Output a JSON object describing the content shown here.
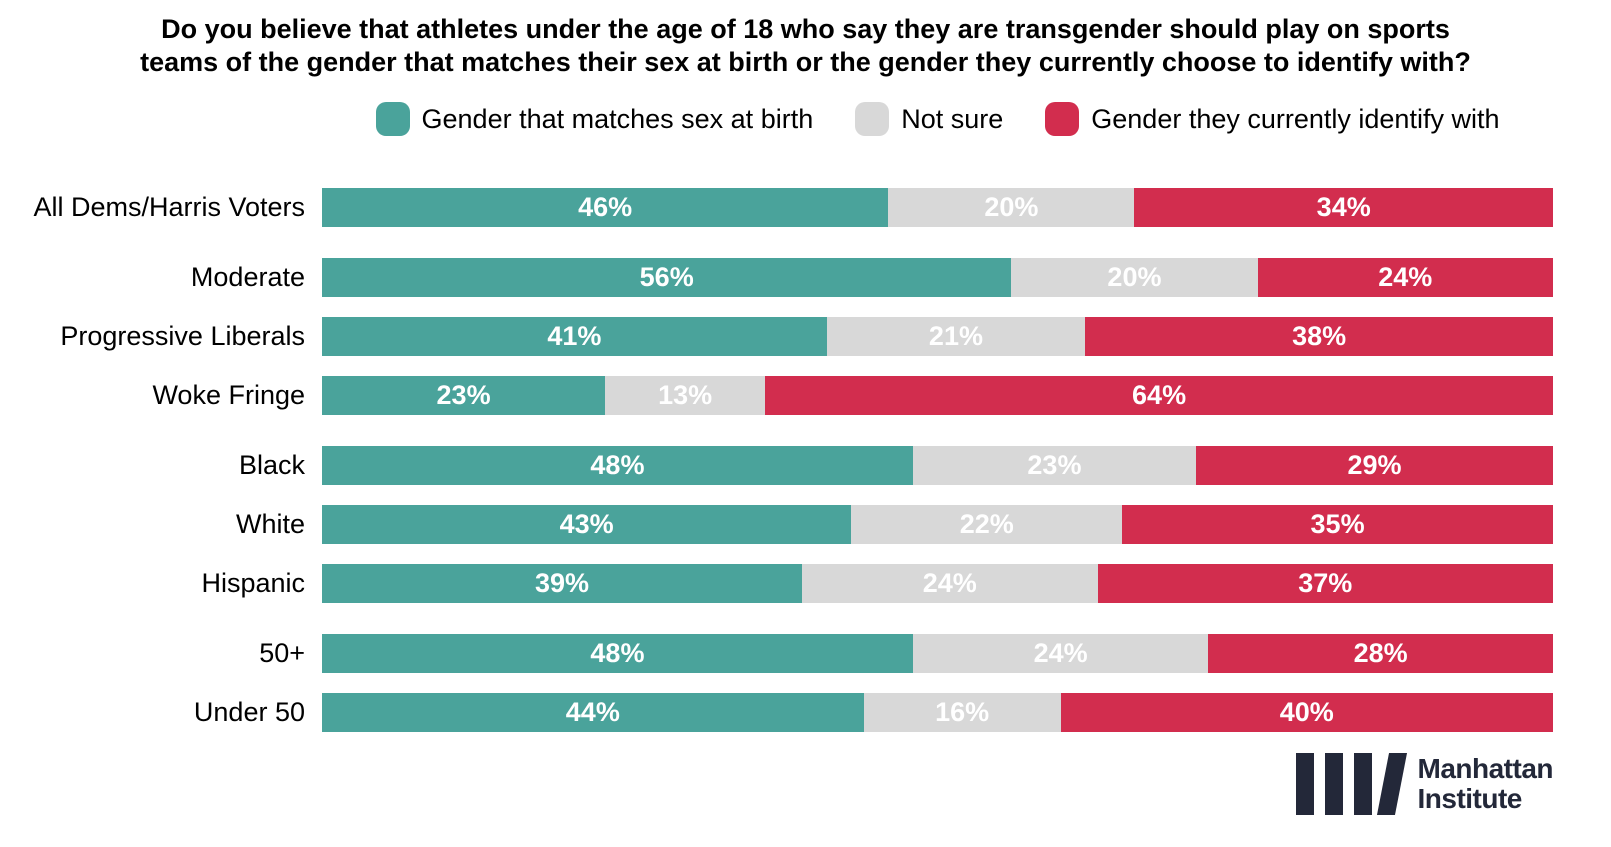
{
  "title": {
    "line1": "Do you believe that athletes under the age of 18 who say they are transgender should play on sports",
    "line2": "teams of the gender that matches their sex at birth or the gender they currently choose to identify with?"
  },
  "legend": [
    {
      "label": "Gender that matches sex at birth",
      "color": "#4AA39B"
    },
    {
      "label": "Not sure",
      "color": "#D8D8D8"
    },
    {
      "label": "Gender they currently identify with",
      "color": "#D22D4E"
    }
  ],
  "chart_data": {
    "type": "bar",
    "subtype": "horizontal-stacked",
    "unit": "%",
    "xlim": [
      0,
      100
    ],
    "grid": false,
    "legend_position": "top-center",
    "categories": [
      "All Dems/Harris Voters",
      "Moderate",
      "Progressive Liberals",
      "Woke Fringe",
      "Black",
      "White",
      "Hispanic",
      "50+",
      "Under 50"
    ],
    "group_starts": [
      1,
      4,
      7
    ],
    "series": [
      {
        "name": "Gender that matches sex at birth",
        "color": "#4AA39B",
        "values": [
          46,
          56,
          41,
          23,
          48,
          43,
          39,
          48,
          44
        ]
      },
      {
        "name": "Not sure",
        "color": "#D8D8D8",
        "values": [
          20,
          20,
          21,
          13,
          23,
          22,
          24,
          24,
          16
        ]
      },
      {
        "name": "Gender they currently identify with",
        "color": "#D22D4E",
        "values": [
          34,
          24,
          38,
          64,
          29,
          35,
          37,
          28,
          40
        ]
      }
    ]
  },
  "logo": {
    "line1": "Manhattan",
    "line2": "Institute"
  }
}
